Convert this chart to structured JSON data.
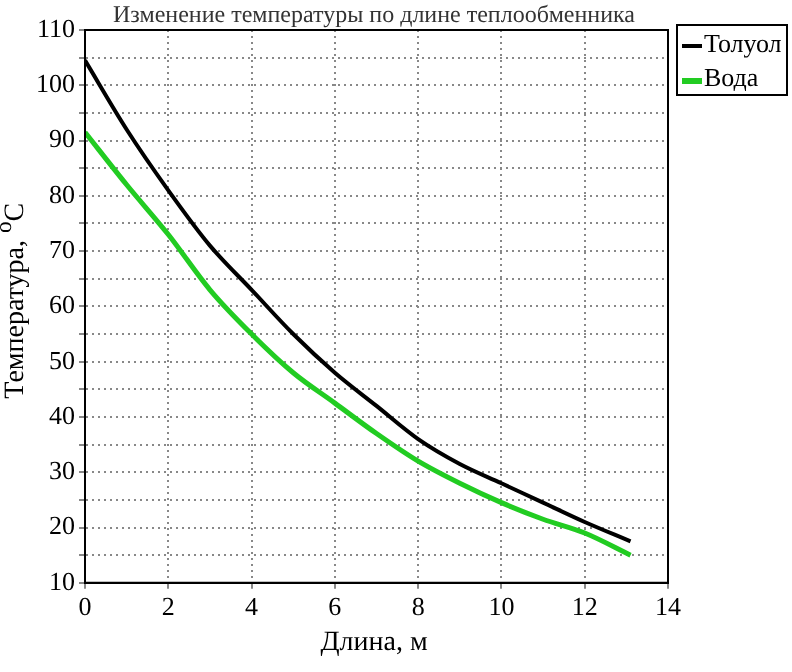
{
  "chart_data": {
    "type": "line",
    "title": "Изменение температуры по длине теплообменника",
    "xlabel": "Длина, м",
    "ylabel": "Температура, $^{o}$C",
    "x": [
      0,
      1,
      2,
      3,
      4,
      5,
      6,
      7,
      8,
      9,
      10,
      11,
      12,
      13.1
    ],
    "series": [
      {
        "name": "Толуол",
        "color": "#000000",
        "values": [
          104.5,
          92,
          81,
          71,
          63,
          55,
          48,
          42,
          36,
          31.5,
          28,
          24.5,
          21,
          17.5
        ]
      },
      {
        "name": "Вода",
        "color": "#22cc22",
        "values": [
          91.5,
          82,
          73,
          63,
          55,
          48,
          42.5,
          37,
          32,
          28,
          24.5,
          21.5,
          19,
          15
        ]
      }
    ],
    "xlim": [
      0,
      14
    ],
    "xticks": [
      0,
      2,
      4,
      6,
      8,
      10,
      12,
      14
    ],
    "ylim": [
      10,
      110
    ],
    "yticks": [
      10,
      {
        "value": 15,
        "label": null
      },
      20,
      {
        "value": 25,
        "label": null
      },
      30,
      {
        "value": 35,
        "label": null
      },
      40,
      {
        "value": 45,
        "label": null
      },
      50,
      {
        "value": 55,
        "label": null
      },
      60,
      {
        "value": 65,
        "label": null
      },
      70,
      {
        "value": 75,
        "label": null
      },
      80,
      {
        "value": 85,
        "label": null
      },
      90,
      {
        "value": 95,
        "label": null
      },
      100,
      {
        "value": 105,
        "label": null
      },
      110
    ],
    "grid": true,
    "legend": "top right",
    "marker": "none",
    "line_style": "solid"
  }
}
